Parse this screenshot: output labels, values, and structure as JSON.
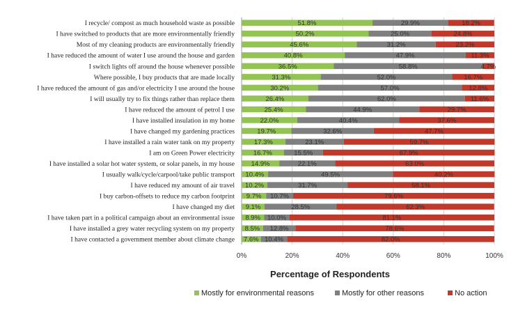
{
  "chart_data": {
    "type": "bar",
    "orientation": "horizontal",
    "stacked": true,
    "title": "",
    "xlabel": "Percentage of Respondents",
    "ylabel": "",
    "xlim": [
      0,
      100
    ],
    "x_ticks": [
      "0%",
      "20%",
      "40%",
      "60%",
      "80%",
      "100%"
    ],
    "grid": "vertical",
    "legend_position": "bottom",
    "categories": [
      "I recycle/ compost as much household waste as possible",
      "I have switched to products that are more environmentally friendly",
      "Most of my cleaning products are environmentally friendly",
      "I have reduced the amount of water I use around the house and garden",
      "I switch lights off around the house whenever possible",
      "Where possible, I buy products that are made locally",
      "I have reduced the amount of gas and/or electricity I use around the house",
      "I will usually try to fix things rather than replace them",
      "I have reduced the amount of petrol I use",
      "I have installed insulation in my home",
      "I have changed my gardening practices",
      "I have installed a rain water tank on my property",
      "I am on Green Power electricity",
      "I have installed a solar hot water system, or solar panels, in my house",
      "I usually walk/cycle/carpool/take public transport",
      "I have reduced my amount of air travel",
      "I buy carbon-offsets to reduce my carbon footprint",
      "I have changed my diet",
      "I have taken part in a political campaign about an environmental issue",
      "I have installed a grey water recycling system on my property",
      "I have contacted a government member about climate change"
    ],
    "series": [
      {
        "name": "Mostly for environmental reasons",
        "color": "#92c353",
        "values": [
          51.8,
          50.2,
          45.6,
          40.8,
          36.5,
          31.3,
          30.2,
          26.4,
          25.4,
          22.0,
          19.7,
          17.3,
          16.7,
          14.9,
          10.4,
          10.2,
          9.7,
          9.1,
          8.9,
          8.5,
          7.6
        ],
        "labels": [
          "51.8%",
          "50.2%",
          "45.6%",
          "40.8%",
          "36.5%",
          "31.3%",
          "30.2%",
          "26.4%",
          "25.4%",
          "22.0%",
          "19.7%",
          "17.3%",
          "16.7%",
          "14.9%",
          "10.4%",
          "10.2%",
          "9.7%",
          "9.1%",
          "8.9%",
          "8.5%",
          "7.6%"
        ]
      },
      {
        "name": "Mostly for other reasons",
        "color": "#7f7f7f",
        "values": [
          29.9,
          25.0,
          31.2,
          47.9,
          58.8,
          52.0,
          57.0,
          62.0,
          44.9,
          40.4,
          32.6,
          23.1,
          15.5,
          22.1,
          49.5,
          31.7,
          10.7,
          28.5,
          10.0,
          12.8,
          10.4
        ],
        "labels": [
          "29.9%",
          "25.0%",
          "31.2%",
          "47.9%",
          "58.8%",
          "52.0%",
          "57.0%",
          "62.0%",
          "44.9%",
          "40.4%",
          "32.6%",
          "23.1%",
          "15.5%",
          "22.1%",
          "49.5%",
          "31.7%",
          "10.7%",
          "28.5%",
          "10.0%",
          "12.8%",
          "10.4%"
        ]
      },
      {
        "name": "No action",
        "color": "#c0392b",
        "values": [
          18.2,
          24.8,
          23.2,
          11.3,
          4.7,
          16.7,
          12.8,
          11.6,
          29.7,
          37.6,
          47.7,
          59.7,
          67.9,
          63.0,
          40.2,
          58.1,
          79.6,
          62.3,
          81.1,
          78.6,
          82.0
        ],
        "labels": [
          "18.2%",
          "24.8%",
          "23.2%",
          "11.3%",
          "4.7%",
          "16.7%",
          "12.8%",
          "11.6%",
          "29.7%",
          "37.6%",
          "47.7%",
          "59.7%",
          "67.9%",
          "63.0%",
          "40.2%",
          "58.1%",
          "79.6%",
          "62.3%",
          "81.1%",
          "78.6%",
          "82.0%"
        ]
      }
    ]
  }
}
